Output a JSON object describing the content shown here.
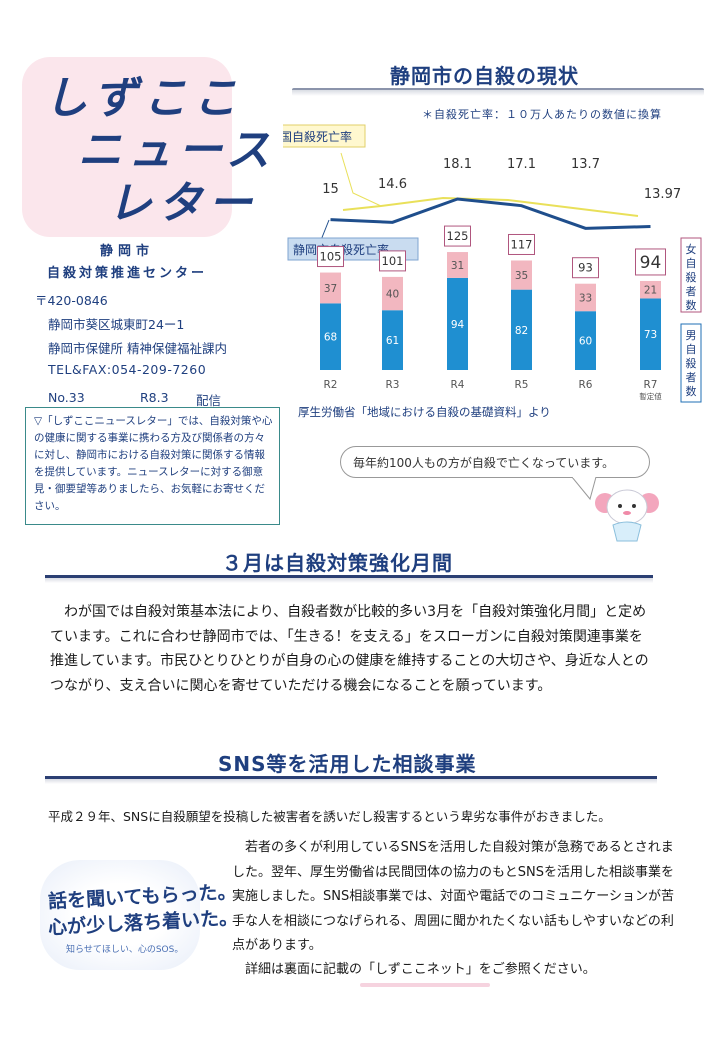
{
  "masthead": {
    "line1": "しずここ",
    "line2": "ニュース",
    "line3": "レター"
  },
  "organization": {
    "city": "静岡市",
    "center": "自殺対策推進センター"
  },
  "address": {
    "postal": "〒420-0846",
    "street": "静岡市葵区城東町24ー1",
    "office": "静岡市保健所 精神保健福祉課内",
    "tel": "TEL&FAX:054-209-7260"
  },
  "issue": {
    "number": "No.33",
    "date": "R8.3",
    "tag": "配信"
  },
  "notice": "▽「しずここニュースレター」では、自殺対策や心の健康に関する事業に携わる方及び関係者の方々に対し、静岡市における自殺対策に関係する情報を提供しています。ニュースレターに対する御意見・御要望等ありましたら、お気軽にお寄せください。",
  "stats_section": {
    "title": "静岡市の自殺の現状",
    "rate_note": "＊自殺死亡率：１０万人あたりの数値に換算",
    "source": "厚生労働省「地域における自殺の基礎資料」より"
  },
  "chart_data": {
    "type": "bar",
    "categories": [
      "R2",
      "R3",
      "R4",
      "R5",
      "R6",
      "R7"
    ],
    "category_notes": [
      "",
      "",
      "",
      "",
      "",
      "暫定値"
    ],
    "series": [
      {
        "name": "男自殺者数",
        "values": [
          68,
          61,
          94,
          82,
          60,
          73
        ],
        "color": "#1f8fd1"
      },
      {
        "name": "女自殺者数",
        "values": [
          37,
          40,
          31,
          35,
          33,
          21
        ],
        "color": "#f2b7c0"
      }
    ],
    "totals": [
      105,
      101,
      125,
      117,
      93,
      94
    ],
    "lines": [
      {
        "name": "国自殺死亡率",
        "values": [
          null,
          null,
          null,
          null,
          null,
          null
        ],
        "color": "#e9e05a"
      },
      {
        "name": "静岡市自殺死亡率",
        "values": [
          15,
          14.6,
          18.1,
          17.1,
          13.7,
          13.97
        ],
        "color": "#1f4e8c"
      }
    ],
    "legend": {
      "female": "女自殺者数",
      "male": "男自殺者数"
    }
  },
  "bubble": "毎年約100人もの方が自殺で亡くなっています。",
  "march_section": {
    "title": "３月は自殺対策強化月間",
    "body": "　わが国では自殺対策基本法により、自殺者数が比較的多い3月を「自殺対策強化月間」と定めています。これに合わせ静岡市では、「生きる！を支える」をスローガンに自殺対策関連事業を推進しています。市民ひとりひとりが自身の心の健康を維持することの大切さや、身近な人とのつながり、支え合いに関心を寄せていただける機会になることを願っています。"
  },
  "sns_section": {
    "title": "SNS等を活用した相談事業",
    "lead": "平成２９年、SNSに自殺願望を投稿した被害者を誘いだし殺害するという卑劣な事件がおきました。",
    "body": "　若者の多くが利用しているSNSを活用した自殺対策が急務であるとされました。翌年、厚生労働省は民間団体の協力のもとSNSを活用した相談事業を実施しました。SNS相談事業では、対面や電話でのコミュニケーションが苦手な人を相談につなげられる、周囲に聞かれたくない話もしやすいなどの利点があります。",
    "ref": "　詳細は裏面に記載の「しずここネット」をご参照ください。",
    "image_line1": "話を聞いてもらった。",
    "image_line2": "心が少し落ち着いた。",
    "image_caption": "知らせてほしい、心のSOS。"
  }
}
